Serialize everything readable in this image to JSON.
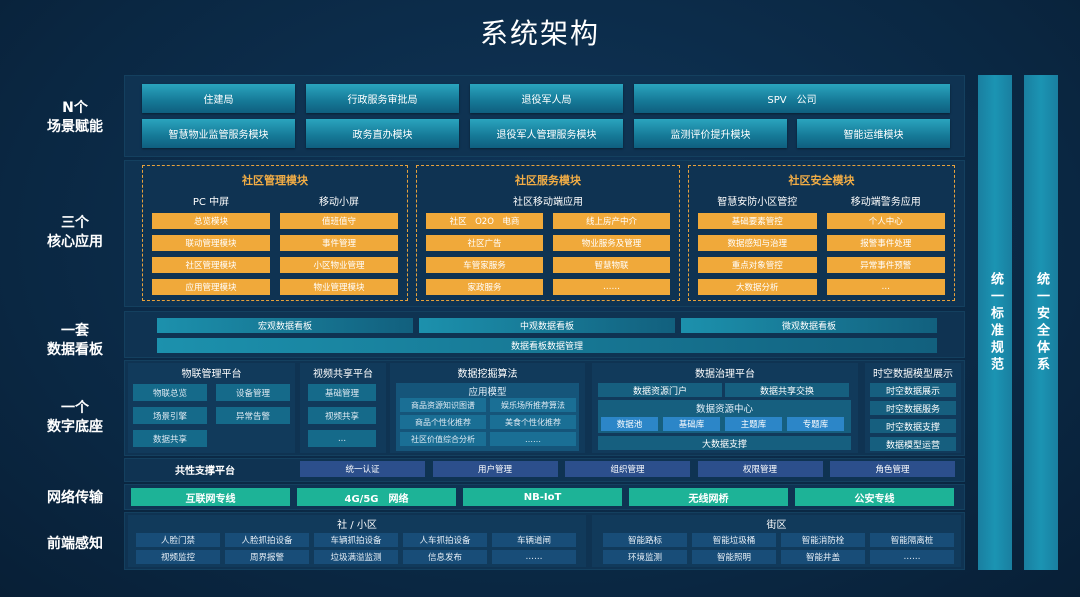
{
  "title": "系统架构",
  "layers": {
    "scene": {
      "label": "N个\n场景赋能",
      "row1": [
        "住建局",
        "行政服务审批局",
        "退役军人局",
        "SPV　公司"
      ],
      "row2": [
        "智慧物业监管服务模块",
        "政务直办模块",
        "退役军人管理服务模块",
        "监测评价提升模块",
        "智能运维模块"
      ]
    },
    "core": {
      "label": "三个\n核心应用",
      "modules": [
        {
          "title": "社区管理模块",
          "cols": [
            {
              "title": "PC 中屏",
              "items": [
                "总览模块",
                "联动管理模块",
                "社区管理模块",
                "应用管理模块"
              ]
            },
            {
              "title": "移动小屏",
              "items": [
                "值班值守",
                "事件管理",
                "小区物业管理",
                "物业管理模块"
              ]
            }
          ]
        },
        {
          "title": "社区服务模块",
          "subtitle": "社区移动端应用",
          "cols": [
            {
              "items": [
                "社区　O2O　电商",
                "社区广告",
                "车管家服务",
                "家政服务"
              ]
            },
            {
              "items": [
                "线上房产中介",
                "物业服务及管理",
                "智慧物联",
                "……"
              ]
            }
          ]
        },
        {
          "title": "社区安全模块",
          "cols": [
            {
              "title": "智慧安防小区管控",
              "items": [
                "基础要素管控",
                "数据感知与治理",
                "重点对象管控",
                "大数据分析"
              ]
            },
            {
              "title": "移动端警务应用",
              "items": [
                "个人中心",
                "报警事件处理",
                "异常事件预警",
                "…"
              ]
            }
          ]
        }
      ]
    },
    "board": {
      "label": "一套\n数据看板",
      "row1": [
        "宏观数据看板",
        "中观数据看板",
        "微观数据看板"
      ],
      "row2": "数据看板数据管理"
    },
    "base": {
      "label": "一个\n数字底座",
      "iot": {
        "title": "物联管理平台",
        "items": [
          "物联总览",
          "设备管理",
          "场景引擎",
          "异常告警",
          "数据共享"
        ]
      },
      "video": {
        "title": "视频共享平台",
        "items": [
          "基础管理",
          "视频共享",
          "..."
        ]
      },
      "mining": {
        "title": "数据挖掘算法",
        "model": "应用模型",
        "items": [
          "商品资源知识图谱",
          "娱乐场所推荐算法",
          "商品个性化推荐",
          "美食个性化推荐",
          "社区价值综合分析",
          "……"
        ]
      },
      "gov": {
        "title": "数据治理平台",
        "top": [
          "数据资源门户",
          "数据共享交换"
        ],
        "center": "数据资源中心",
        "libs": [
          "数据池",
          "基础库",
          "主题库",
          "专题库"
        ],
        "bottom": "大数据支撑"
      },
      "spatial": {
        "title": "时空数据模型展示",
        "items": [
          "时空数据展示",
          "时空数据服务",
          "时空数据支撑",
          "数据模型运营"
        ]
      }
    },
    "common": {
      "label": "共性支撑平台",
      "items": [
        "统一认证",
        "用户管理",
        "组织管理",
        "权限管理",
        "角色管理"
      ]
    },
    "network": {
      "label": "网络传输",
      "items": [
        "互联网专线",
        "4G/5G　网络",
        "NB-IoT",
        "无线网桥",
        "公安专线"
      ]
    },
    "frontend": {
      "label": "前端感知",
      "community": {
        "title": "社 / 小区",
        "items": [
          "人脸门禁",
          "人脸抓拍设备",
          "车辆抓拍设备",
          "人车抓拍设备",
          "车辆道闸",
          "视频监控",
          "周界报警",
          "垃圾满溢监测",
          "信息发布",
          "……"
        ]
      },
      "street": {
        "title": "街区",
        "items": [
          "智能路标",
          "智能垃圾桶",
          "智能消防栓",
          "智能隔离桩",
          "环境监测",
          "智能照明",
          "智能井盖",
          "……"
        ]
      }
    }
  },
  "pillars": [
    "统一标准规范",
    "统一安全体系"
  ],
  "colors": {
    "background": "#0a2540",
    "teal": "#1b8aa8",
    "orange": "#f0a93a",
    "network": "#1db397",
    "common": "#2c4f8c"
  }
}
